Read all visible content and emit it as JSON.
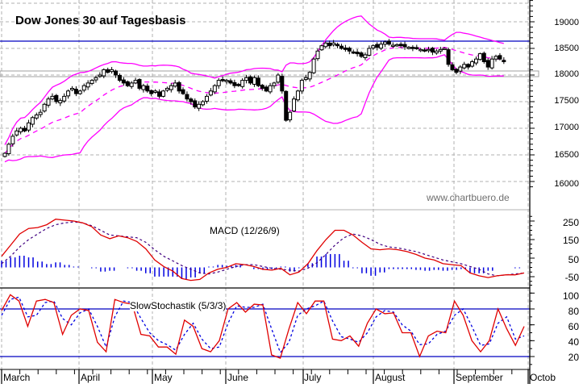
{
  "title": "Dow Jones 30 auf Tagesbasis",
  "watermark": "www.chartbuero.de",
  "colors": {
    "candle": "#000000",
    "bollinger": "#ff00ff",
    "resistance_line": "#0000c0",
    "support_box": "#a0a0a0",
    "macd_line": "#e00000",
    "signal_line": "#400080",
    "histogram": "#0000e0",
    "stoch_k": "#e00000",
    "stoch_d": "#0000e0",
    "stoch_bands": "#0000c0",
    "grid": "#b0b0b0"
  },
  "chart_data": [
    {
      "type": "candlestick",
      "title": "Dow Jones 30 auf Tagesbasis",
      "xlabel": "",
      "ylabel": "",
      "ylim": [
        15800,
        19400
      ],
      "yticks": [
        16000,
        16500,
        17000,
        17500,
        18000,
        18500,
        19000
      ],
      "grid": true,
      "months": [
        "March",
        "April",
        "May",
        "June",
        "July",
        "August",
        "September",
        "Octob"
      ],
      "overlays": [
        "Bollinger Bands (upper, middle dashed, lower)"
      ],
      "horizontal_lines": [
        {
          "value": 18620,
          "label": "resistance",
          "color": "#0000c0"
        }
      ],
      "support_zone": [
        17970,
        18060
      ],
      "close_series": [
        16530,
        16700,
        16850,
        16950,
        17000,
        16950,
        17100,
        17200,
        17250,
        17300,
        17450,
        17550,
        17600,
        17500,
        17520,
        17600,
        17700,
        17750,
        17650,
        17700,
        17800,
        17850,
        17900,
        17950,
        18000,
        18100,
        18050,
        18100,
        18000,
        17900,
        17850,
        17800,
        17850,
        17900,
        17750,
        17800,
        17700,
        17650,
        17700,
        17600,
        17700,
        17750,
        17800,
        17850,
        17700,
        17650,
        17550,
        17500,
        17400,
        17450,
        17500,
        17600,
        17700,
        17800,
        17900,
        17900,
        17900,
        17850,
        17800,
        17800,
        17900,
        17950,
        17850,
        17950,
        17800,
        17750,
        17700,
        17800,
        17850,
        18000,
        17700,
        17150,
        17300,
        17550,
        17700,
        17900,
        17950,
        18050,
        18300,
        18450,
        18550,
        18600,
        18550,
        18600,
        18550,
        18500,
        18480,
        18450,
        18430,
        18400,
        18350,
        18380,
        18500,
        18550,
        18520,
        18580,
        18620,
        18580,
        18560,
        18570,
        18550,
        18530,
        18520,
        18500,
        18500,
        18480,
        18450,
        18480,
        18430,
        18450,
        18480,
        18500,
        18200,
        18100,
        18050,
        18150,
        18200,
        18150,
        18250,
        18300,
        18400,
        18250,
        18150,
        18300,
        18350,
        18300,
        18250
      ]
    },
    {
      "type": "line",
      "title": "MACD (12/26/9)",
      "ylim": [
        -100,
        300
      ],
      "yticks": [
        -50,
        50,
        150,
        250
      ],
      "series": [
        {
          "name": "MACD",
          "values": [
            60,
            120,
            180,
            210,
            215,
            230,
            260,
            255,
            250,
            240,
            220,
            175,
            155,
            170,
            160,
            140,
            100,
            40,
            5,
            -20,
            -60,
            -70,
            -65,
            -30,
            -10,
            0,
            20,
            15,
            5,
            -10,
            -15,
            -5,
            -40,
            -25,
            20,
            90,
            150,
            200,
            200,
            175,
            135,
            100,
            95,
            100,
            95,
            85,
            70,
            50,
            40,
            20,
            15,
            10,
            -30,
            -45,
            -55,
            -45,
            -40,
            -40,
            -30
          ]
        },
        {
          "name": "Signal",
          "values": [
            20,
            60,
            110,
            150,
            180,
            210,
            230,
            240,
            245,
            240,
            225,
            200,
            175,
            170,
            165,
            160,
            135,
            95,
            60,
            35,
            10,
            -10,
            -30,
            -35,
            -25,
            -10,
            5,
            15,
            15,
            5,
            -5,
            -10,
            -15,
            -20,
            -5,
            25,
            70,
            120,
            160,
            180,
            170,
            150,
            125,
            110,
            105,
            95,
            85,
            70,
            55,
            40,
            30,
            20,
            5,
            -10,
            -35,
            -45,
            -40,
            -35,
            -30
          ]
        },
        {
          "name": "Histogram",
          "values": [
            40,
            60,
            70,
            60,
            35,
            20,
            30,
            15,
            5,
            0,
            -5,
            -25,
            -20,
            0,
            -5,
            -20,
            -35,
            -55,
            -55,
            -55,
            -70,
            -60,
            -35,
            5,
            15,
            10,
            15,
            0,
            -10,
            -15,
            -10,
            5,
            -25,
            -5,
            25,
            65,
            80,
            80,
            40,
            -5,
            -35,
            -50,
            -30,
            -10,
            -10,
            -10,
            -15,
            -20,
            -15,
            -20,
            -15,
            -10,
            -35,
            -35,
            -20,
            0,
            0,
            -5,
            0
          ]
        }
      ]
    },
    {
      "type": "line",
      "title": "SlowStochastik (5/3/3)",
      "ylim": [
        0,
        110
      ],
      "yticks": [
        20,
        40,
        60,
        80,
        100
      ],
      "horizontal_lines": [
        20,
        80
      ],
      "series": [
        {
          "name": "%K",
          "values": [
            78,
            98,
            90,
            58,
            90,
            92,
            88,
            48,
            72,
            80,
            78,
            38,
            26,
            92,
            88,
            86,
            48,
            46,
            32,
            32,
            23,
            66,
            58,
            30,
            26,
            40,
            80,
            88,
            76,
            86,
            85,
            22,
            18,
            55,
            88,
            74,
            90,
            90,
            42,
            40,
            46,
            33,
            62,
            80,
            74,
            75,
            50,
            50,
            20,
            46,
            52,
            50,
            90,
            72,
            40,
            26,
            40,
            80,
            55,
            34,
            58
          ]
        },
        {
          "name": "%D",
          "values": [
            72,
            92,
            95,
            70,
            72,
            88,
            90,
            68,
            60,
            75,
            80,
            58,
            32,
            70,
            90,
            88,
            68,
            50,
            40,
            35,
            28,
            48,
            62,
            42,
            30,
            32,
            62,
            84,
            82,
            82,
            86,
            55,
            25,
            38,
            72,
            80,
            84,
            90,
            65,
            45,
            42,
            38,
            50,
            70,
            78,
            76,
            60,
            52,
            35,
            36,
            48,
            52,
            72,
            80,
            58,
            34,
            36,
            62,
            70,
            42,
            46
          ]
        }
      ]
    }
  ],
  "axes": {
    "price_labels": [
      "19000",
      "18500",
      "18000",
      "17500",
      "17000",
      "16500",
      "16000"
    ],
    "macd_labels": [
      "250",
      "150",
      "50",
      "-50"
    ],
    "stoch_labels": [
      "100",
      "80",
      "60",
      "40",
      "20"
    ],
    "months": [
      "March",
      "April",
      "May",
      "June",
      "July",
      "August",
      "September",
      "Octob"
    ]
  },
  "labels": {
    "macd": "MACD (12/26/9)",
    "stoch": "SlowStochastik (5/3/3)"
  }
}
